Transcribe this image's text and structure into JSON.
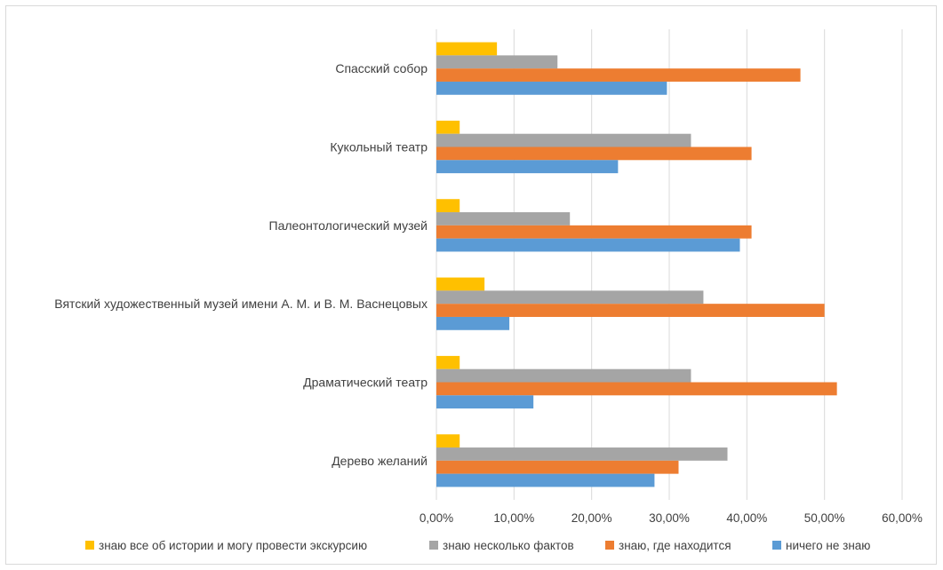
{
  "chart_data": {
    "type": "bar",
    "orientation": "horizontal",
    "categories": [
      "Спасский собор",
      "Кукольный театр",
      "Палеонтологический музей",
      "Вятский художественный музей имени А. М. и В. М. Васнецовых",
      "Драматический театр",
      "Дерево желаний"
    ],
    "series": [
      {
        "name": "знаю все об истории и могу провести экскурсию",
        "color": "#FFC000",
        "values": [
          0.078,
          0.03,
          0.03,
          0.062,
          0.03,
          0.03
        ]
      },
      {
        "name": "знаю несколько фактов",
        "color": "#A5A5A5",
        "values": [
          0.156,
          0.328,
          0.172,
          0.344,
          0.328,
          0.375
        ]
      },
      {
        "name": "знаю, где находится",
        "color": "#ED7D31",
        "values": [
          0.469,
          0.406,
          0.406,
          0.5,
          0.516,
          0.312
        ]
      },
      {
        "name": "ничего не знаю",
        "color": "#5B9BD5",
        "values": [
          0.297,
          0.234,
          0.391,
          0.094,
          0.125,
          0.281
        ]
      }
    ],
    "xlim": [
      0,
      0.6
    ],
    "x_ticks": [
      "0,00%",
      "10,00%",
      "20,00%",
      "30,00%",
      "40,00%",
      "50,00%",
      "60,00%"
    ],
    "grid": true,
    "legend_position": "bottom"
  }
}
